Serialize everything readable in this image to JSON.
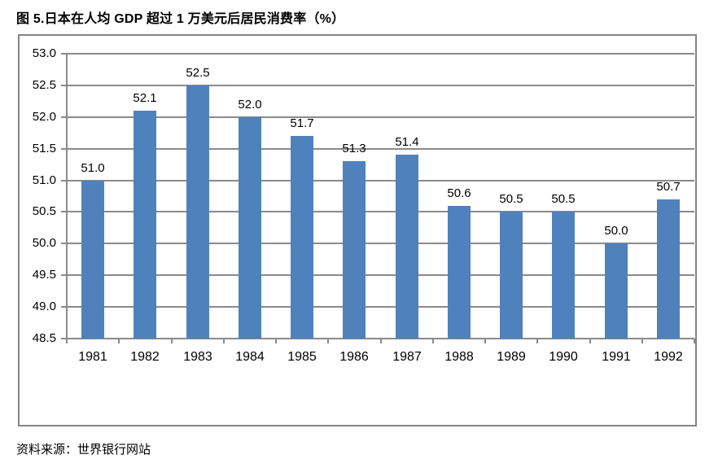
{
  "page": {
    "title": "图 5.日本在人均 GDP 超过 1 万美元后居民消费率（%）",
    "source": "资料来源：世界银行网站"
  },
  "chart_data": {
    "type": "bar",
    "title": "图 5.日本在人均 GDP 超过 1 万美元后居民消费率（%）",
    "categories": [
      "1981",
      "1982",
      "1983",
      "1984",
      "1985",
      "1986",
      "1987",
      "1988",
      "1989",
      "1990",
      "1991",
      "1992"
    ],
    "values": [
      51.0,
      52.1,
      52.5,
      52.0,
      51.7,
      51.3,
      51.4,
      50.6,
      50.5,
      50.5,
      50.0,
      50.7
    ],
    "value_labels": [
      "51.0",
      "52.1",
      "52.5",
      "52.0",
      "51.7",
      "51.3",
      "51.4",
      "50.6",
      "50.5",
      "50.5",
      "50.0",
      "50.7"
    ],
    "xlabel": "",
    "ylabel": "",
    "ylim": [
      48.5,
      53.0
    ],
    "ytick_step": 0.5,
    "ytick_labels": [
      "48.5",
      "49.0",
      "49.5",
      "50.0",
      "50.5",
      "51.0",
      "51.5",
      "52.0",
      "52.5",
      "53.0"
    ],
    "grid": true,
    "legend": false,
    "data_labels": true,
    "colors": {
      "bar": "#4F81BD",
      "gridline": "#8A8A8A",
      "frame_border": "#858585",
      "text": "#000000"
    },
    "source": "资料来源：世界银行网站"
  }
}
